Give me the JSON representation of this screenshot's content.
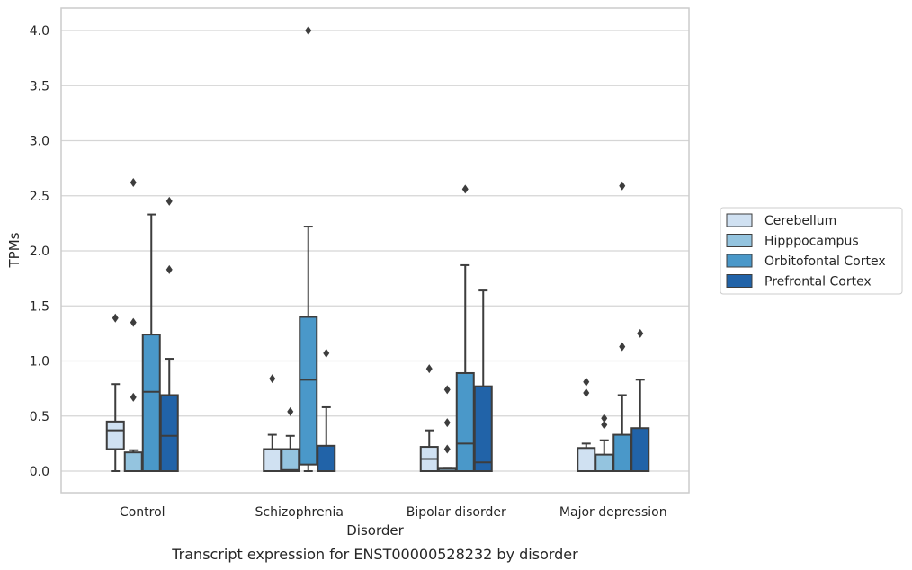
{
  "caption": "Transcript expression for ENST00000528232 by disorder",
  "chart_data": {
    "type": "box",
    "xlabel": "Disorder",
    "ylabel": "TPMs",
    "ylim": [
      -0.2,
      4.2
    ],
    "yticks": [
      "0.0",
      "0.5",
      "1.0",
      "1.5",
      "2.0",
      "2.5",
      "3.0",
      "3.5",
      "4.0"
    ],
    "grid": true,
    "legend_position": "right",
    "categories": [
      "Control",
      "Schizophrenia",
      "Bipolar disorder",
      "Major depression"
    ],
    "series": [
      {
        "name": "Cerebellum",
        "color": "#d0e1f2",
        "boxes": [
          {
            "whislo": 0.0,
            "q1": 0.2,
            "med": 0.37,
            "q3": 0.45,
            "whishi": 0.79,
            "fliers": [
              1.39
            ]
          },
          {
            "whislo": 0.0,
            "q1": 0.0,
            "med": 0.0,
            "q3": 0.2,
            "whishi": 0.33,
            "fliers": [
              0.84
            ]
          },
          {
            "whislo": 0.0,
            "q1": 0.0,
            "med": 0.11,
            "q3": 0.22,
            "whishi": 0.37,
            "fliers": [
              0.93
            ]
          },
          {
            "whislo": 0.0,
            "q1": 0.0,
            "med": 0.0,
            "q3": 0.21,
            "whishi": 0.25,
            "fliers": [
              0.71,
              0.81
            ]
          }
        ]
      },
      {
        "name": "Hipppocampus",
        "color": "#94c4df",
        "boxes": [
          {
            "whislo": 0.0,
            "q1": 0.0,
            "med": 0.0,
            "q3": 0.17,
            "whishi": 0.19,
            "fliers": [
              0.67,
              1.35,
              2.62
            ]
          },
          {
            "whislo": 0.0,
            "q1": 0.0,
            "med": 0.01,
            "q3": 0.2,
            "whishi": 0.32,
            "fliers": [
              0.54
            ]
          },
          {
            "whislo": 0.0,
            "q1": 0.0,
            "med": 0.02,
            "q3": 0.03,
            "whishi": 0.03,
            "fliers": [
              0.2,
              0.44,
              0.74
            ]
          },
          {
            "whislo": 0.0,
            "q1": 0.0,
            "med": 0.0,
            "q3": 0.15,
            "whishi": 0.28,
            "fliers": [
              0.42,
              0.48
            ]
          }
        ]
      },
      {
        "name": "Orbitofontal Cortex",
        "color": "#4a98c9",
        "boxes": [
          {
            "whislo": 0.0,
            "q1": 0.0,
            "med": 0.72,
            "q3": 1.24,
            "whishi": 2.33,
            "fliers": []
          },
          {
            "whislo": 0.0,
            "q1": 0.06,
            "med": 0.83,
            "q3": 1.4,
            "whishi": 2.22,
            "fliers": [
              4.0
            ]
          },
          {
            "whislo": 0.0,
            "q1": 0.0,
            "med": 0.25,
            "q3": 0.89,
            "whishi": 1.87,
            "fliers": [
              2.56
            ]
          },
          {
            "whislo": 0.0,
            "q1": 0.0,
            "med": 0.0,
            "q3": 0.33,
            "whishi": 0.69,
            "fliers": [
              1.13,
              2.59
            ]
          }
        ]
      },
      {
        "name": "Prefrontal Cortex",
        "color": "#2163a8",
        "boxes": [
          {
            "whislo": 0.0,
            "q1": 0.0,
            "med": 0.32,
            "q3": 0.69,
            "whishi": 1.02,
            "fliers": [
              1.83,
              2.45
            ]
          },
          {
            "whislo": 0.0,
            "q1": 0.0,
            "med": 0.0,
            "q3": 0.23,
            "whishi": 0.58,
            "fliers": [
              1.07
            ]
          },
          {
            "whislo": 0.0,
            "q1": 0.0,
            "med": 0.08,
            "q3": 0.77,
            "whishi": 1.64,
            "fliers": []
          },
          {
            "whislo": 0.0,
            "q1": 0.0,
            "med": 0.0,
            "q3": 0.39,
            "whishi": 0.83,
            "fliers": [
              1.25
            ]
          }
        ]
      }
    ]
  }
}
